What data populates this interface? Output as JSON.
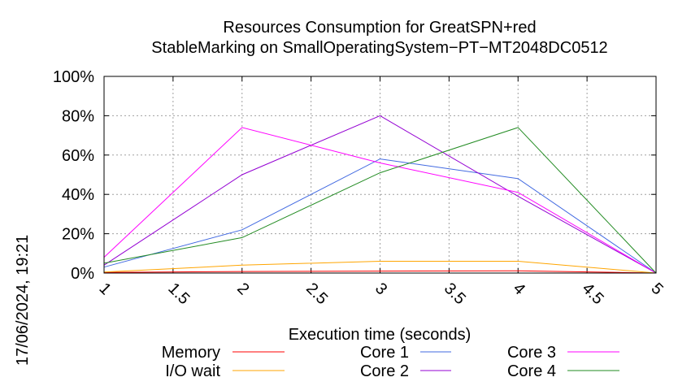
{
  "chart_data": {
    "type": "line",
    "title": [
      "Resources Consumption for GreatSPN+red",
      "StableMarking on SmallOperatingSystem−PT−MT2048DC0512"
    ],
    "xlabel": "Execution time (seconds)",
    "ylabel": "",
    "xlim": [
      1,
      5
    ],
    "ylim": [
      0,
      100
    ],
    "x_ticks": [
      "1",
      "1.5",
      "2",
      "2.5",
      "3",
      "3.5",
      "4",
      "4.5",
      "5"
    ],
    "y_ticks": [
      "0%",
      "20%",
      "40%",
      "60%",
      "80%",
      "100%"
    ],
    "grid": true,
    "legend_position": "bottom",
    "side_stamp": "17/06/2024, 19:21",
    "series": [
      {
        "name": "Memory",
        "color": "#ff0000",
        "x": [
          1,
          2,
          3,
          4,
          5
        ],
        "y": [
          0.3,
          0.8,
          1.0,
          1.1,
          0
        ]
      },
      {
        "name": "I/O wait",
        "color": "#ffa500",
        "x": [
          1,
          2,
          3,
          4,
          5
        ],
        "y": [
          0.5,
          4,
          6,
          6,
          0
        ]
      },
      {
        "name": "Core 1",
        "color": "#4169e1",
        "x": [
          1,
          2,
          3,
          4,
          5
        ],
        "y": [
          3,
          22,
          58,
          48,
          0
        ]
      },
      {
        "name": "Core 2",
        "color": "#9400d3",
        "x": [
          1,
          2,
          3,
          4,
          5
        ],
        "y": [
          4,
          50,
          80,
          39,
          0
        ]
      },
      {
        "name": "Core 3",
        "color": "#ff00ff",
        "x": [
          1,
          2,
          3,
          4,
          5
        ],
        "y": [
          8,
          74,
          56,
          41,
          0
        ]
      },
      {
        "name": "Core 4",
        "color": "#228b22",
        "x": [
          1,
          2,
          3,
          4,
          5
        ],
        "y": [
          5,
          18,
          51,
          74,
          0
        ]
      }
    ]
  }
}
